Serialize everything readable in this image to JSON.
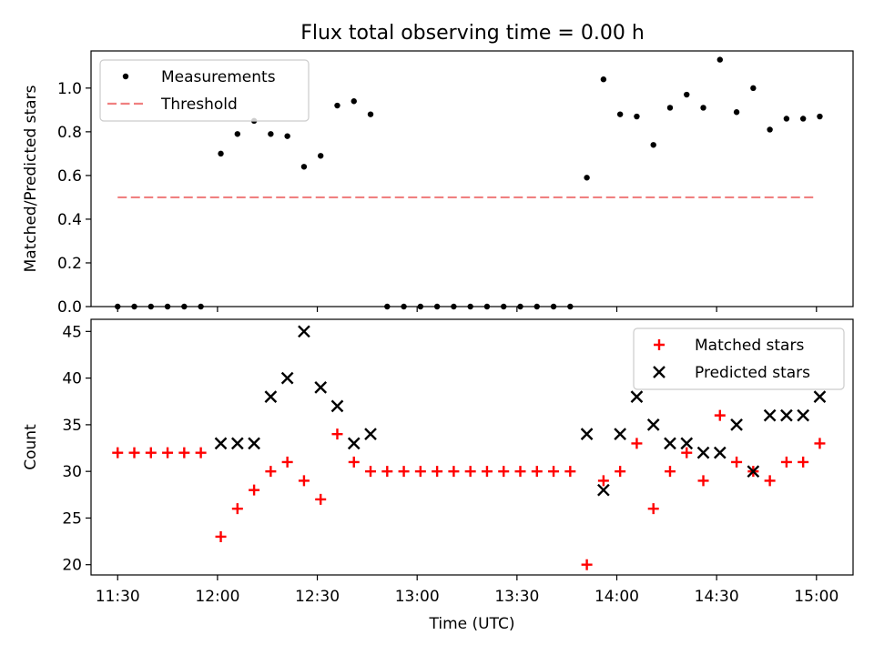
{
  "figure": {
    "title": "Flux total observing time = 0.00 h"
  },
  "chart_data": [
    {
      "type": "scatter",
      "title": "Flux total observing time = 0.00 h",
      "xlabel": "",
      "ylabel": "Matched/Predicted stars",
      "xlim": [
        "11:22",
        "15:11"
      ],
      "ylim": [
        0,
        1.17
      ],
      "yticks": [
        0.0,
        0.2,
        0.4,
        0.6,
        0.8,
        1.0
      ],
      "ytick_labels": [
        "0.0",
        "0.2",
        "0.4",
        "0.6",
        "0.8",
        "1.0"
      ],
      "legend": {
        "position": "top-left"
      },
      "series": [
        {
          "name": "Measurements",
          "marker": "dot",
          "color": "#000000",
          "x": [
            "11:30",
            "11:35",
            "11:40",
            "11:45",
            "11:50",
            "11:55",
            "12:01",
            "12:06",
            "12:11",
            "12:16",
            "12:21",
            "12:26",
            "12:31",
            "12:36",
            "12:41",
            "12:46",
            "12:51",
            "12:56",
            "13:01",
            "13:06",
            "13:11",
            "13:16",
            "13:21",
            "13:26",
            "13:31",
            "13:36",
            "13:41",
            "13:46",
            "13:51",
            "13:56",
            "14:01",
            "14:06",
            "14:11",
            "14:16",
            "14:21",
            "14:26",
            "14:31",
            "14:36",
            "14:41",
            "14:46",
            "14:51",
            "14:56",
            "15:01"
          ],
          "y": [
            0.0,
            0.0,
            0.0,
            0.0,
            0.0,
            0.0,
            0.7,
            0.79,
            0.85,
            0.79,
            0.78,
            0.64,
            0.69,
            0.92,
            0.94,
            0.88,
            0.0,
            0.0,
            0.0,
            0.0,
            0.0,
            0.0,
            0.0,
            0.0,
            0.0,
            0.0,
            0.0,
            0.0,
            0.59,
            1.04,
            0.88,
            0.87,
            0.74,
            0.91,
            0.97,
            0.91,
            1.13,
            0.89,
            1.0,
            0.81,
            0.86,
            0.86,
            0.87
          ]
        },
        {
          "name": "Threshold",
          "marker": "dashed-line",
          "color": "#f08080",
          "x": [
            "11:30",
            "15:00"
          ],
          "y": [
            0.5,
            0.5
          ]
        }
      ]
    },
    {
      "type": "scatter",
      "xlabel": "Time (UTC)",
      "ylabel": "Count",
      "xlim": [
        "11:22",
        "15:11"
      ],
      "ylim": [
        18.9,
        46.3
      ],
      "yticks": [
        20,
        25,
        30,
        35,
        40,
        45
      ],
      "ytick_labels": [
        "20",
        "25",
        "30",
        "35",
        "40",
        "45"
      ],
      "xticks": [
        "11:30",
        "12:00",
        "12:30",
        "13:00",
        "13:30",
        "14:00",
        "14:30",
        "15:00"
      ],
      "legend": {
        "position": "top-right"
      },
      "series": [
        {
          "name": "Matched stars",
          "marker": "plus",
          "color": "#ff0000",
          "x": [
            "11:30",
            "11:35",
            "11:40",
            "11:45",
            "11:50",
            "11:55",
            "12:01",
            "12:06",
            "12:11",
            "12:16",
            "12:21",
            "12:26",
            "12:31",
            "12:36",
            "12:41",
            "12:46",
            "12:51",
            "12:56",
            "13:01",
            "13:06",
            "13:11",
            "13:16",
            "13:21",
            "13:26",
            "13:31",
            "13:36",
            "13:41",
            "13:46",
            "13:51",
            "13:56",
            "14:01",
            "14:06",
            "14:11",
            "14:16",
            "14:21",
            "14:26",
            "14:31",
            "14:36",
            "14:41",
            "14:46",
            "14:51",
            "14:56",
            "15:01"
          ],
          "y": [
            32,
            32,
            32,
            32,
            32,
            32,
            23,
            26,
            28,
            30,
            31,
            29,
            27,
            34,
            31,
            30,
            30,
            30,
            30,
            30,
            30,
            30,
            30,
            30,
            30,
            30,
            30,
            30,
            20,
            29,
            30,
            33,
            26,
            30,
            32,
            29,
            36,
            31,
            30,
            29,
            31,
            31,
            33
          ]
        },
        {
          "name": "Predicted stars",
          "marker": "x",
          "color": "#000000",
          "x": [
            "12:01",
            "12:06",
            "12:11",
            "12:16",
            "12:21",
            "12:26",
            "12:31",
            "12:36",
            "12:41",
            "12:46",
            "13:51",
            "13:56",
            "14:01",
            "14:06",
            "14:11",
            "14:16",
            "14:21",
            "14:26",
            "14:31",
            "14:36",
            "14:41",
            "14:46",
            "14:51",
            "14:56",
            "15:01"
          ],
          "y": [
            33,
            33,
            33,
            38,
            40,
            45,
            39,
            37,
            33,
            34,
            34,
            28,
            34,
            38,
            35,
            33,
            33,
            32,
            32,
            35,
            30,
            36,
            36,
            36,
            38
          ]
        }
      ]
    }
  ]
}
